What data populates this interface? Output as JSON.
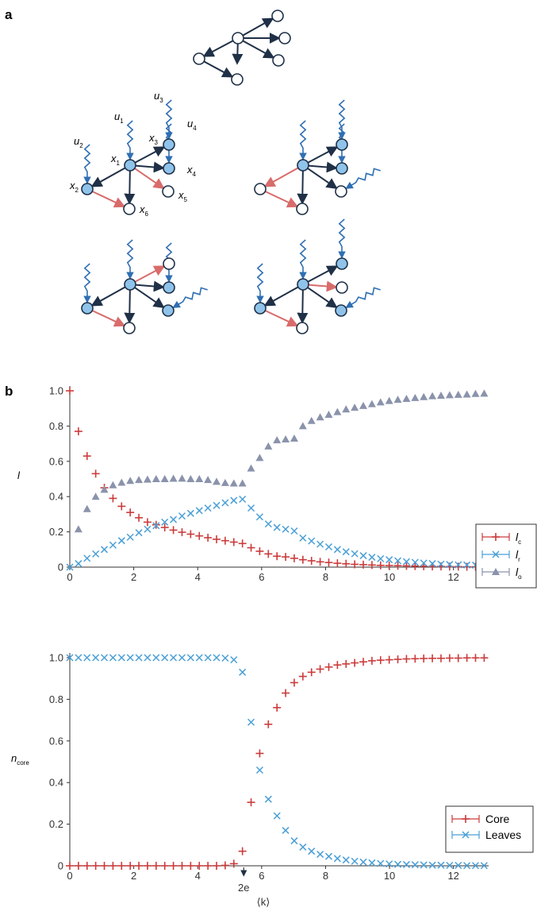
{
  "figure": {
    "panel_a_letter": "a",
    "panel_b_letter": "b",
    "colors": {
      "node_fill": "#8fc3ea",
      "node_stroke": "#1f3047",
      "edge": "#1f3047",
      "input": "#2f6fb3",
      "red_edge": "#d96b6b",
      "core": "#cc3b3b",
      "leaves": "#4a9fd6",
      "o": "#8a93ab"
    },
    "network_labels": {
      "u1": "u",
      "u1_sub": "1",
      "u2": "u",
      "u2_sub": "2",
      "u3": "u",
      "u3_sub": "3",
      "u4": "u",
      "u4_sub": "4",
      "x1": "x",
      "x1_sub": "1",
      "x2": "x",
      "x2_sub": "2",
      "x3": "x",
      "x3_sub": "3",
      "x4": "x",
      "x4_sub": "4",
      "x5": "x",
      "x5_sub": "5",
      "x6": "x",
      "x6_sub": "6"
    }
  },
  "chart_data": [
    {
      "type": "scatter",
      "ylabel": "l",
      "xlim": [
        0,
        13
      ],
      "ylim": [
        0,
        1.0
      ],
      "x_ticks": [
        "0",
        "2",
        "4",
        "6",
        "8",
        "10",
        "12"
      ],
      "y_ticks": [
        "0",
        "0.2",
        "0.4",
        "0.6",
        "0.8",
        "1.0"
      ],
      "legend_placement": "right",
      "series": [
        {
          "name": "l",
          "name_sub": "c",
          "marker": "plus",
          "color": "#cc3b3b",
          "x": [
            0,
            0.27,
            0.54,
            0.81,
            1.08,
            1.35,
            1.62,
            1.89,
            2.16,
            2.43,
            2.7,
            2.97,
            3.24,
            3.51,
            3.78,
            4.05,
            4.32,
            4.59,
            4.86,
            5.13,
            5.4,
            5.67,
            5.94,
            6.21,
            6.48,
            6.75,
            7.02,
            7.29,
            7.56,
            7.83,
            8.1,
            8.37,
            8.64,
            8.91,
            9.18,
            9.45,
            9.72,
            9.99,
            10.26,
            10.53,
            10.8,
            11.07,
            11.34,
            11.61,
            11.88,
            12.15,
            12.42,
            12.69,
            12.96
          ],
          "y": [
            1.0,
            0.77,
            0.63,
            0.53,
            0.45,
            0.39,
            0.345,
            0.31,
            0.28,
            0.255,
            0.24,
            0.225,
            0.21,
            0.198,
            0.187,
            0.177,
            0.167,
            0.158,
            0.15,
            0.142,
            0.134,
            0.11,
            0.09,
            0.075,
            0.062,
            0.058,
            0.05,
            0.042,
            0.036,
            0.03,
            0.026,
            0.022,
            0.019,
            0.016,
            0.014,
            0.012,
            0.01,
            0.009,
            0.008,
            0.007,
            0.006,
            0.005,
            0.004,
            0.004,
            0.003,
            0.003,
            0.002,
            0.002,
            0.002
          ]
        },
        {
          "name": "l",
          "name_sub": "r",
          "marker": "x",
          "color": "#4a9fd6",
          "x": [
            0,
            0.27,
            0.54,
            0.81,
            1.08,
            1.35,
            1.62,
            1.89,
            2.16,
            2.43,
            2.7,
            2.97,
            3.24,
            3.51,
            3.78,
            4.05,
            4.32,
            4.59,
            4.86,
            5.13,
            5.4,
            5.67,
            5.94,
            6.21,
            6.48,
            6.75,
            7.02,
            7.29,
            7.56,
            7.83,
            8.1,
            8.37,
            8.64,
            8.91,
            9.18,
            9.45,
            9.72,
            9.99,
            10.26,
            10.53,
            10.8,
            11.07,
            11.34,
            11.61,
            11.88,
            12.15,
            12.42,
            12.69,
            12.96
          ],
          "y": [
            0.0,
            0.02,
            0.05,
            0.075,
            0.1,
            0.125,
            0.15,
            0.17,
            0.195,
            0.215,
            0.235,
            0.255,
            0.27,
            0.29,
            0.305,
            0.32,
            0.335,
            0.35,
            0.365,
            0.378,
            0.385,
            0.335,
            0.285,
            0.245,
            0.225,
            0.215,
            0.205,
            0.165,
            0.148,
            0.13,
            0.115,
            0.1,
            0.087,
            0.076,
            0.065,
            0.056,
            0.048,
            0.042,
            0.036,
            0.031,
            0.027,
            0.023,
            0.02,
            0.017,
            0.015,
            0.013,
            0.012,
            0.011,
            0.01
          ]
        },
        {
          "name": "l",
          "name_sub": "o",
          "marker": "triangle",
          "color": "#8a93ab",
          "x": [
            0.27,
            0.54,
            0.81,
            1.08,
            1.35,
            1.62,
            1.89,
            2.16,
            2.43,
            2.7,
            2.97,
            3.24,
            3.51,
            3.78,
            4.05,
            4.32,
            4.59,
            4.86,
            5.13,
            5.4,
            5.67,
            5.94,
            6.21,
            6.48,
            6.75,
            7.02,
            7.29,
            7.56,
            7.83,
            8.1,
            8.37,
            8.64,
            8.91,
            9.18,
            9.45,
            9.72,
            9.99,
            10.26,
            10.53,
            10.8,
            11.07,
            11.34,
            11.61,
            11.88,
            12.15,
            12.42,
            12.69,
            12.96
          ],
          "y": [
            0.215,
            0.33,
            0.4,
            0.44,
            0.465,
            0.48,
            0.49,
            0.495,
            0.497,
            0.5,
            0.5,
            0.502,
            0.503,
            0.5,
            0.5,
            0.495,
            0.485,
            0.478,
            0.475,
            0.475,
            0.56,
            0.62,
            0.685,
            0.72,
            0.725,
            0.73,
            0.8,
            0.83,
            0.85,
            0.865,
            0.88,
            0.895,
            0.905,
            0.915,
            0.925,
            0.935,
            0.943,
            0.95,
            0.955,
            0.96,
            0.965,
            0.97,
            0.973,
            0.976,
            0.978,
            0.98,
            0.983,
            0.985
          ]
        }
      ]
    },
    {
      "type": "scatter",
      "ylabel": "n",
      "ylabel_sub": "core",
      "xlabel": "⟨k⟩",
      "xlim": [
        0,
        13
      ],
      "ylim": [
        0,
        1.0
      ],
      "x_ticks": [
        "0",
        "2",
        "4",
        "6",
        "8",
        "10",
        "12"
      ],
      "y_ticks": [
        "0",
        "0.2",
        "0.4",
        "0.6",
        "0.8",
        "1.0"
      ],
      "annotation": "2e",
      "annotation_x": 5.44,
      "legend_placement": "right",
      "series": [
        {
          "name": "Core",
          "marker": "plus",
          "color": "#cc3b3b",
          "x": [
            0,
            0.27,
            0.54,
            0.81,
            1.08,
            1.35,
            1.62,
            1.89,
            2.16,
            2.43,
            2.7,
            2.97,
            3.24,
            3.51,
            3.78,
            4.05,
            4.32,
            4.59,
            4.86,
            5.13,
            5.4,
            5.67,
            5.94,
            6.21,
            6.48,
            6.75,
            7.02,
            7.29,
            7.56,
            7.83,
            8.1,
            8.37,
            8.64,
            8.91,
            9.18,
            9.45,
            9.72,
            9.99,
            10.26,
            10.53,
            10.8,
            11.07,
            11.34,
            11.61,
            11.88,
            12.15,
            12.42,
            12.69,
            12.96
          ],
          "y": [
            0,
            0,
            0,
            0,
            0,
            0,
            0,
            0,
            0,
            0,
            0,
            0,
            0,
            0,
            0,
            0,
            0,
            0,
            0.002,
            0.01,
            0.07,
            0.305,
            0.54,
            0.68,
            0.76,
            0.83,
            0.88,
            0.91,
            0.93,
            0.945,
            0.955,
            0.965,
            0.97,
            0.975,
            0.98,
            0.985,
            0.988,
            0.99,
            0.992,
            0.994,
            0.995,
            0.996,
            0.997,
            0.997,
            0.998,
            0.998,
            0.999,
            0.999,
            0.999
          ]
        },
        {
          "name": "Leaves",
          "marker": "x",
          "color": "#4a9fd6",
          "x": [
            0,
            0.27,
            0.54,
            0.81,
            1.08,
            1.35,
            1.62,
            1.89,
            2.16,
            2.43,
            2.7,
            2.97,
            3.24,
            3.51,
            3.78,
            4.05,
            4.32,
            4.59,
            4.86,
            5.13,
            5.4,
            5.67,
            5.94,
            6.21,
            6.48,
            6.75,
            7.02,
            7.29,
            7.56,
            7.83,
            8.1,
            8.37,
            8.64,
            8.91,
            9.18,
            9.45,
            9.72,
            9.99,
            10.26,
            10.53,
            10.8,
            11.07,
            11.34,
            11.61,
            11.88,
            12.15,
            12.42,
            12.69,
            12.96
          ],
          "y": [
            1.0,
            1.0,
            1.0,
            1.0,
            1.0,
            1.0,
            1.0,
            1.0,
            1.0,
            1.0,
            1.0,
            1.0,
            1.0,
            1.0,
            1.0,
            1.0,
            1.0,
            1.0,
            0.998,
            0.99,
            0.93,
            0.69,
            0.46,
            0.32,
            0.24,
            0.17,
            0.12,
            0.09,
            0.07,
            0.055,
            0.045,
            0.035,
            0.028,
            0.022,
            0.018,
            0.014,
            0.011,
            0.009,
            0.007,
            0.006,
            0.005,
            0.004,
            0.003,
            0.003,
            0.002,
            0.002,
            0.001,
            0.001,
            0.001
          ]
        }
      ]
    }
  ]
}
